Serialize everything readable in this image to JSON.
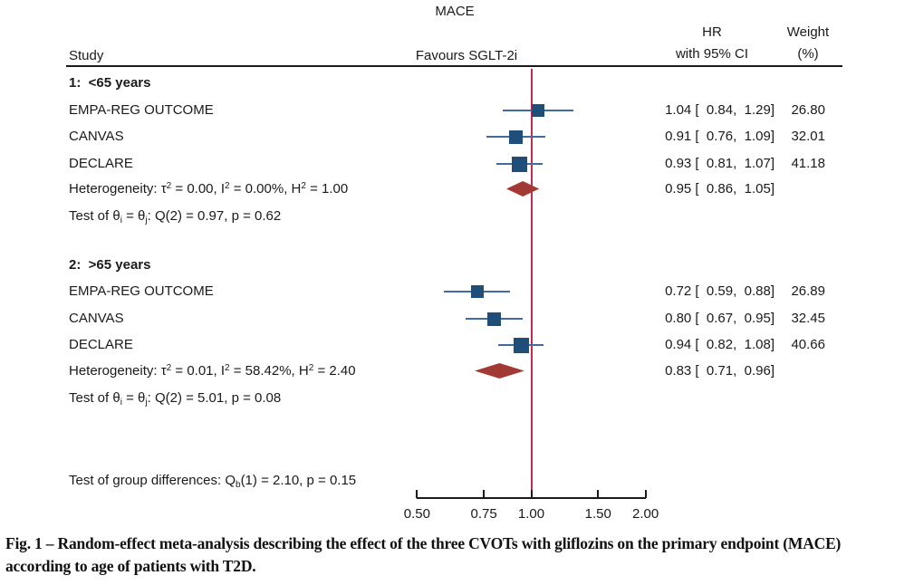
{
  "title": "MACE",
  "header": {
    "study": "Study",
    "favours": "Favours SGLT-2i",
    "hr_line1": "HR",
    "hr_line2": "with 95% CI",
    "weight_line1": "Weight",
    "weight_line2": "(%)"
  },
  "chart_data": {
    "type": "forest",
    "x_scale": "log",
    "x_domain": [
      0.5,
      2.0
    ],
    "ref_line_value": 1.0,
    "axis_ticks": [
      {
        "label": "0.50",
        "value": 0.5
      },
      {
        "label": "0.75",
        "value": 0.75
      },
      {
        "label": "1.00",
        "value": 1.0
      },
      {
        "label": "1.50",
        "value": 1.5
      },
      {
        "label": "2.00",
        "value": 2.0
      }
    ],
    "groups": [
      {
        "label": "1:  <65 years",
        "studies": [
          {
            "label": "EMPA-REG OUTCOME",
            "hr": 1.04,
            "ci_low": 0.84,
            "ci_high": 1.29,
            "weight": 26.8,
            "hr_ci_text": "1.04 [  0.84,  1.29]",
            "weight_text": "26.80"
          },
          {
            "label": "CANVAS",
            "hr": 0.91,
            "ci_low": 0.76,
            "ci_high": 1.09,
            "weight": 32.01,
            "hr_ci_text": "0.91 [  0.76,  1.09]",
            "weight_text": "32.01"
          },
          {
            "label": "DECLARE",
            "hr": 0.93,
            "ci_low": 0.81,
            "ci_high": 1.07,
            "weight": 41.18,
            "hr_ci_text": "0.93 [  0.81,  1.07]",
            "weight_text": "41.18"
          }
        ],
        "pooled": {
          "hr": 0.95,
          "ci_low": 0.86,
          "ci_high": 1.05,
          "hr_ci_text": "0.95 [  0.86,  1.05]"
        },
        "heterogeneity": {
          "p1": "Heterogeneity: τ",
          "s1": "2",
          "p2": " = 0.00, I",
          "s2": "2",
          "p3": " = 0.00%, H",
          "s3": "2",
          "p4": " = 1.00"
        },
        "test": {
          "p1": "Test of θ",
          "sub1": "i",
          "p2": " = θ",
          "sub2": "j",
          "p3": ": Q(2) = 0.97, p = 0.62"
        }
      },
      {
        "label": "2:  >65 years",
        "studies": [
          {
            "label": "EMPA-REG OUTCOME",
            "hr": 0.72,
            "ci_low": 0.59,
            "ci_high": 0.88,
            "weight": 26.89,
            "hr_ci_text": "0.72 [  0.59,  0.88]",
            "weight_text": "26.89"
          },
          {
            "label": "CANVAS",
            "hr": 0.8,
            "ci_low": 0.67,
            "ci_high": 0.95,
            "weight": 32.45,
            "hr_ci_text": "0.80 [  0.67,  0.95]",
            "weight_text": "32.45"
          },
          {
            "label": "DECLARE",
            "hr": 0.94,
            "ci_low": 0.82,
            "ci_high": 1.08,
            "weight": 40.66,
            "hr_ci_text": "0.94 [  0.82,  1.08]",
            "weight_text": "40.66"
          }
        ],
        "pooled": {
          "hr": 0.83,
          "ci_low": 0.71,
          "ci_high": 0.96,
          "hr_ci_text": "0.83 [  0.71,  0.96]"
        },
        "heterogeneity": {
          "p1": "Heterogeneity: τ",
          "s1": "2",
          "p2": " = 0.01, I",
          "s2": "2",
          "p3": " = 58.42%, H",
          "s3": "2",
          "p4": " = 2.40"
        },
        "test": {
          "p1": "Test of θ",
          "sub1": "i",
          "p2": " = θ",
          "sub2": "j",
          "p3": ": Q(2) = 5.01, p = 0.08"
        }
      }
    ],
    "group_difference": {
      "p1": "Test of group differences: Q",
      "sub1": "b",
      "p2": "(1) = 2.10, p = 0.15"
    }
  },
  "caption": {
    "line1": "Fig. 1 – Random-effect meta-analysis describing the effect of the three CVOTs with gliflozins on the primary endpoint (MACE)",
    "line2": "according to age of patients with T2D."
  },
  "colors": {
    "marker_square": "#1f4e79",
    "ci_line": "#426b9d",
    "diamond": "#a13a33",
    "ref_line": "#c32b51",
    "axis": "#1a1a1a"
  }
}
